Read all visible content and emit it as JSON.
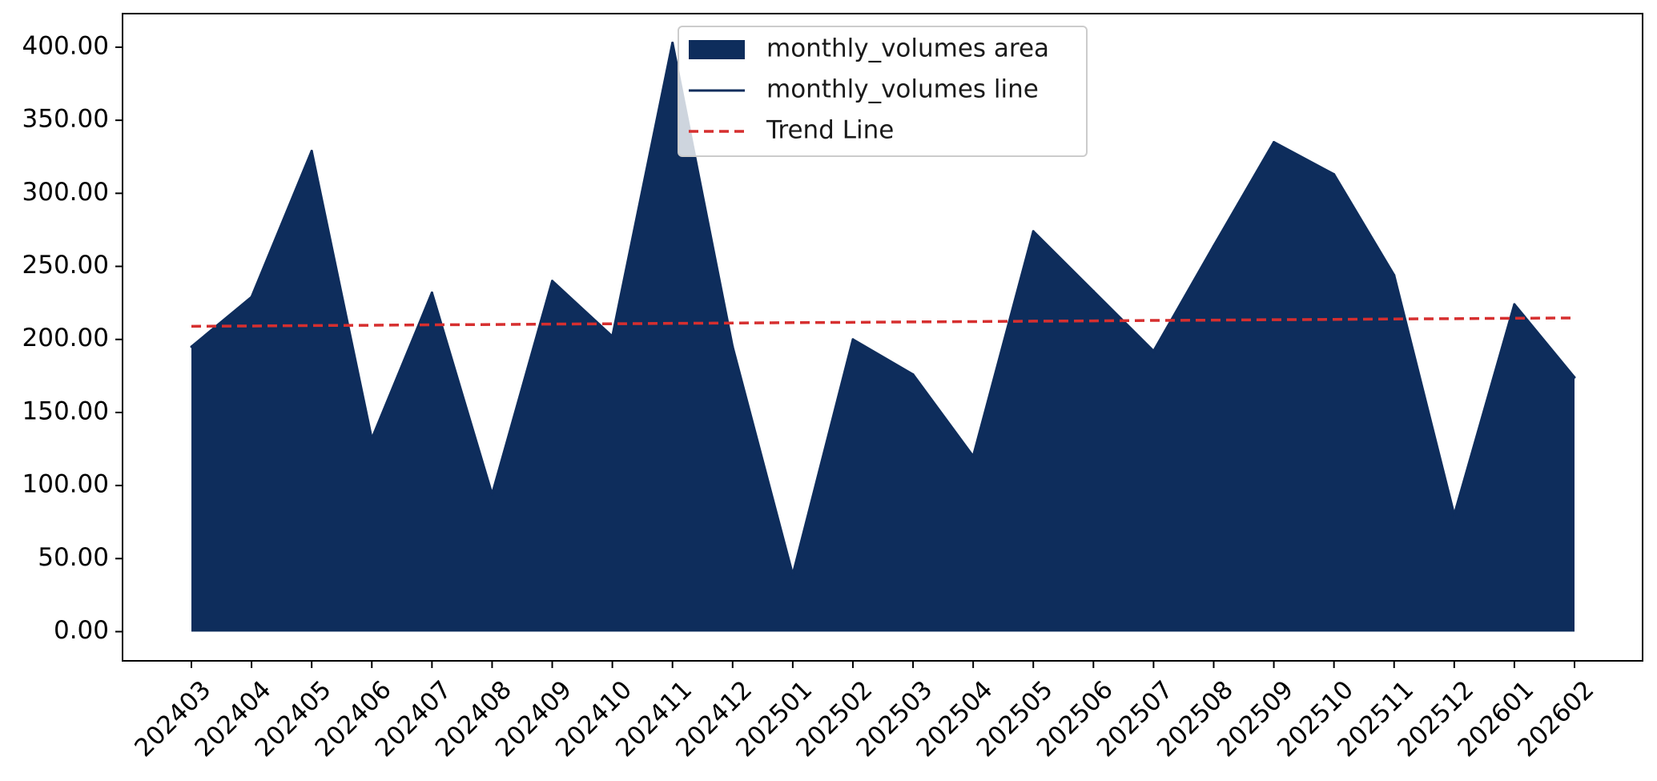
{
  "chart_data": {
    "type": "area",
    "title": "",
    "xlabel": "",
    "ylabel": "",
    "categories": [
      "202403",
      "202404",
      "202405",
      "202406",
      "202407",
      "202408",
      "202409",
      "202410",
      "202411",
      "202412",
      "202501",
      "202502",
      "202503",
      "202504",
      "202505",
      "202506",
      "202507",
      "202508",
      "202509",
      "202510",
      "202511",
      "202512",
      "202601",
      "202602"
    ],
    "series": [
      {
        "name": "monthly_volumes area",
        "kind": "area",
        "color": "#0e2d5c",
        "values": [
          195,
          229,
          329,
          132,
          232,
          94,
          240,
          202,
          403,
          195,
          39,
          200,
          176,
          120,
          274,
          233,
          192,
          264,
          335,
          313,
          244,
          80,
          224,
          174
        ]
      },
      {
        "name": "monthly_volumes line",
        "kind": "line",
        "color": "#0e2d5c",
        "values": [
          195,
          229,
          329,
          132,
          232,
          94,
          240,
          202,
          403,
          195,
          39,
          200,
          176,
          120,
          274,
          233,
          192,
          264,
          335,
          313,
          244,
          80,
          224,
          174
        ]
      },
      {
        "name": "Trend Line",
        "kind": "trend",
        "color": "#d62f2f",
        "values": [
          209.0,
          209.2,
          209.5,
          209.7,
          210.0,
          210.2,
          210.5,
          210.7,
          211.0,
          211.2,
          211.5,
          211.7,
          212.0,
          212.2,
          212.5,
          212.7,
          213.0,
          213.2,
          213.5,
          213.7,
          214.0,
          214.2,
          214.5,
          214.7
        ]
      }
    ],
    "y_ticks": [
      "0.00",
      "50.00",
      "100.00",
      "150.00",
      "200.00",
      "250.00",
      "300.00",
      "350.00",
      "400.00"
    ],
    "y_tick_values": [
      0,
      50,
      100,
      150,
      200,
      250,
      300,
      350,
      400
    ],
    "ylim": [
      -20,
      423
    ],
    "grid": false,
    "legend_position": "upper-center",
    "legend": [
      {
        "label": "monthly_volumes area",
        "type": "patch",
        "color": "#0e2d5c"
      },
      {
        "label": "monthly_volumes line",
        "type": "line",
        "color": "#0e2d5c"
      },
      {
        "label": "Trend Line",
        "type": "dashed",
        "color": "#d62f2f"
      }
    ]
  }
}
